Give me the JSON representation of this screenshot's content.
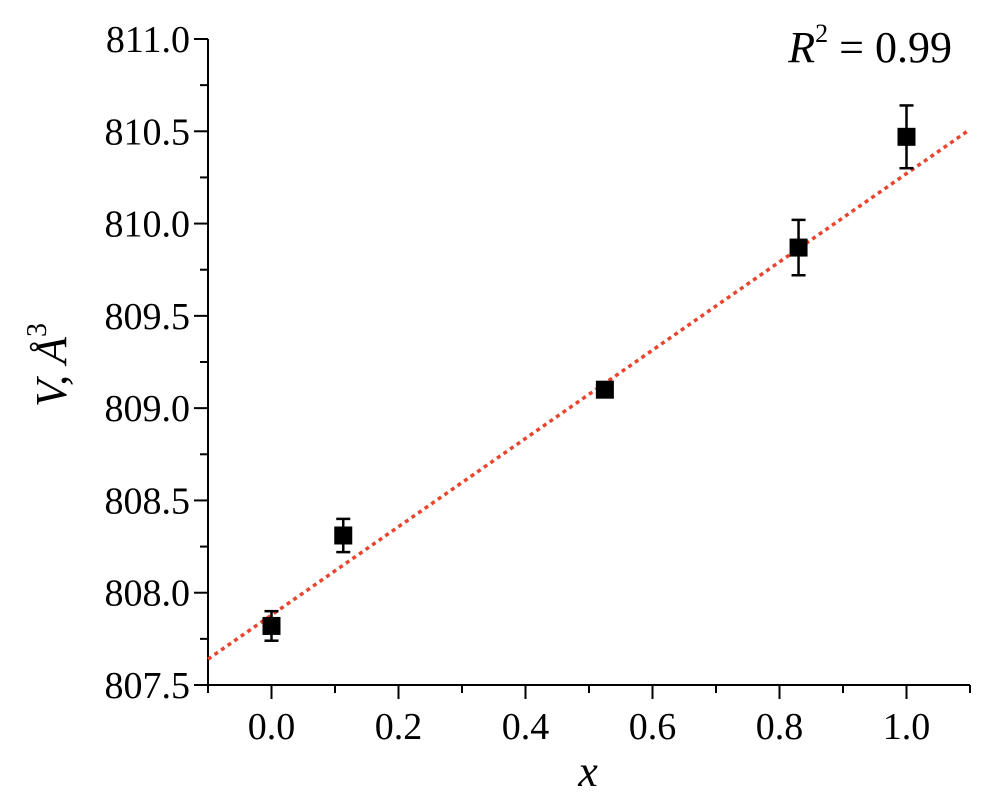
{
  "chart_data": {
    "type": "scatter",
    "xlabel": "x",
    "ylabel": "V, Å",
    "ylabel_superscript": "3",
    "xlim": [
      -0.1,
      1.1
    ],
    "ylim": [
      807.5,
      811.0
    ],
    "x_ticks": [
      0.0,
      0.2,
      0.4,
      0.6,
      0.8,
      1.0
    ],
    "x_tick_labels": [
      "0.0",
      "0.2",
      "0.4",
      "0.6",
      "0.8",
      "1.0"
    ],
    "y_ticks": [
      807.5,
      808.0,
      808.5,
      809.0,
      809.5,
      810.0,
      810.5,
      811.0
    ],
    "y_tick_labels": [
      "807.5",
      "808.0",
      "808.5",
      "809.0",
      "809.5",
      "810.0",
      "810.5",
      "811.0"
    ],
    "series": [
      {
        "marker": "square",
        "color": "#000000",
        "points": [
          {
            "x": 0.0,
            "y": 807.82,
            "err": 0.08
          },
          {
            "x": 0.113,
            "y": 808.31,
            "err": 0.09
          },
          {
            "x": 0.525,
            "y": 809.1,
            "err": 0.04
          },
          {
            "x": 0.83,
            "y": 809.87,
            "err": 0.15
          },
          {
            "x": 1.0,
            "y": 810.47,
            "err": 0.17
          }
        ]
      }
    ],
    "fit_line": {
      "style": "dotted",
      "color": "#e8452c",
      "x_range": [
        -0.1,
        1.1
      ],
      "y_range": [
        807.64,
        810.51
      ]
    },
    "annotation": {
      "r_symbol": "R",
      "superscript": "2",
      "text": " = 0.99",
      "placement": "top-right"
    },
    "grid": false
  }
}
